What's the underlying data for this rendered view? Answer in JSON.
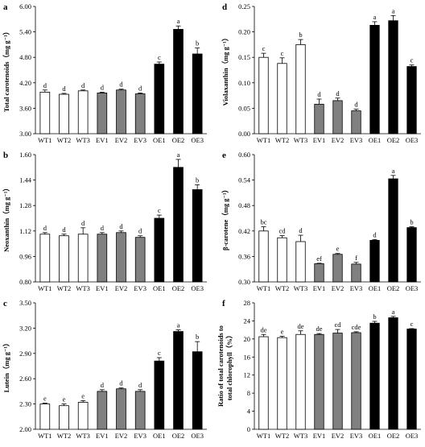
{
  "colors": {
    "wt": "#ffffff",
    "ev": "#808080",
    "oe": "#000000",
    "stroke": "#000000"
  },
  "chart_data": [
    {
      "type": "bar",
      "panel": "a",
      "ylabel": "Total carotenoids（mg g⁻¹）",
      "ylim": [
        3.0,
        6.0
      ],
      "yticks": [
        "3.00",
        "3.60",
        "4.20",
        "4.80",
        "5.40",
        "6.00"
      ],
      "categories": [
        "WT1",
        "WT2",
        "WT3",
        "EV1",
        "EV2",
        "EV3",
        "OE1",
        "OE2",
        "OE3"
      ],
      "groups": [
        "wt",
        "wt",
        "wt",
        "ev",
        "ev",
        "ev",
        "oe",
        "oe",
        "oe"
      ],
      "values": [
        3.98,
        3.93,
        4.01,
        3.96,
        4.03,
        3.94,
        4.64,
        5.46,
        4.88
      ],
      "errors": [
        0.05,
        0.02,
        0.02,
        0.02,
        0.02,
        0.02,
        0.05,
        0.08,
        0.14
      ],
      "letters": [
        "d",
        "d",
        "d",
        "d",
        "d",
        "d",
        "c",
        "a",
        "b"
      ]
    },
    {
      "type": "bar",
      "panel": "b",
      "ylabel": "Neoxanthin（mg g⁻¹）",
      "ylim": [
        0.8,
        1.6
      ],
      "yticks": [
        "0.80",
        "0.96",
        "1.12",
        "1.28",
        "1.44",
        "1.60"
      ],
      "categories": [
        "WT1",
        "WT2",
        "WT3",
        "EV1",
        "EV2",
        "EV3",
        "OE1",
        "OE2",
        "OE3"
      ],
      "groups": [
        "wt",
        "wt",
        "wt",
        "ev",
        "ev",
        "ev",
        "oe",
        "oe",
        "oe"
      ],
      "values": [
        1.1,
        1.09,
        1.1,
        1.1,
        1.11,
        1.08,
        1.2,
        1.52,
        1.38
      ],
      "errors": [
        0.01,
        0.01,
        0.04,
        0.01,
        0.01,
        0.01,
        0.02,
        0.05,
        0.03
      ],
      "letters": [
        "d",
        "d",
        "d",
        "d",
        "d",
        "d",
        "c",
        "a",
        "b"
      ]
    },
    {
      "type": "bar",
      "panel": "c",
      "ylabel": "Lutein（mg g⁻¹）",
      "ylim": [
        2.0,
        3.5
      ],
      "yticks": [
        "2.00",
        "2.30",
        "2.60",
        "2.90",
        "3.20",
        "3.50"
      ],
      "categories": [
        "WT1",
        "WT2",
        "WT3",
        "EV1",
        "EV2",
        "EV3",
        "OE1",
        "OE2",
        "OE3"
      ],
      "groups": [
        "wt",
        "wt",
        "wt",
        "ev",
        "ev",
        "ev",
        "oe",
        "oe",
        "oe"
      ],
      "values": [
        2.3,
        2.28,
        2.32,
        2.45,
        2.48,
        2.45,
        2.81,
        3.16,
        2.92
      ],
      "errors": [
        0.01,
        0.02,
        0.02,
        0.02,
        0.01,
        0.02,
        0.04,
        0.02,
        0.12
      ],
      "letters": [
        "e",
        "e",
        "e",
        "d",
        "d",
        "d",
        "c",
        "a",
        "b"
      ]
    },
    {
      "type": "bar",
      "panel": "d",
      "ylabel": "Violaxanthin（mg g⁻¹）",
      "ylim": [
        0.0,
        0.25
      ],
      "yticks": [
        "0.00",
        "0.05",
        "0.10",
        "0.15",
        "0.20",
        "0.25"
      ],
      "categories": [
        "WT1",
        "WT2",
        "WT3",
        "EV1",
        "EV2",
        "EV3",
        "OE1",
        "OE2",
        "OE3"
      ],
      "groups": [
        "wt",
        "wt",
        "wt",
        "ev",
        "ev",
        "ev",
        "oe",
        "oe",
        "oe"
      ],
      "values": [
        0.15,
        0.138,
        0.175,
        0.058,
        0.065,
        0.045,
        0.213,
        0.222,
        0.132
      ],
      "errors": [
        0.008,
        0.011,
        0.01,
        0.01,
        0.005,
        0.003,
        0.007,
        0.01,
        0.003
      ],
      "letters": [
        "c",
        "c",
        "b",
        "d",
        "d",
        "d",
        "a",
        "a",
        "c"
      ]
    },
    {
      "type": "bar",
      "panel": "e",
      "ylabel": "β-carotene（mg g⁻¹）",
      "ylim": [
        0.3,
        0.6
      ],
      "yticks": [
        "0.30",
        "0.36",
        "0.42",
        "0.48",
        "0.54",
        "0.60"
      ],
      "categories": [
        "WT1",
        "WT2",
        "WT3",
        "EV1",
        "EV2",
        "EV3",
        "OE1",
        "OE2",
        "OE3"
      ],
      "groups": [
        "wt",
        "wt",
        "wt",
        "ev",
        "ev",
        "ev",
        "oe",
        "oe",
        "oe"
      ],
      "values": [
        0.42,
        0.404,
        0.395,
        0.343,
        0.365,
        0.342,
        0.398,
        0.543,
        0.428
      ],
      "errors": [
        0.01,
        0.005,
        0.015,
        0.001,
        0.002,
        0.004,
        0.002,
        0.008,
        0.002
      ],
      "letters": [
        "bc",
        "cd",
        "d",
        "ef",
        "e",
        "f",
        "d",
        "a",
        "b"
      ]
    },
    {
      "type": "bar",
      "panel": "f",
      "ylabel": "Ratio of total carotenoids to total chlorophyll（%）",
      "ylim": [
        0,
        28
      ],
      "yticks": [
        "0",
        "4",
        "8",
        "12",
        "16",
        "20",
        "24",
        "28"
      ],
      "categories": [
        "WT1",
        "WT2",
        "WT3",
        "EV1",
        "EV2",
        "EV3",
        "OE1",
        "OE2",
        "OE3"
      ],
      "groups": [
        "wt",
        "wt",
        "wt",
        "ev",
        "ev",
        "ev",
        "oe",
        "oe",
        "oe"
      ],
      "values": [
        20.5,
        20.3,
        21.0,
        21.0,
        21.3,
        21.4,
        23.5,
        24.7,
        22.2
      ],
      "errors": [
        0.5,
        0.3,
        0.8,
        0.2,
        0.8,
        0.2,
        0.4,
        0.3,
        0.1
      ],
      "letters": [
        "de",
        "e",
        "de",
        "de",
        "cd",
        "cde",
        "b",
        "a",
        "c"
      ]
    }
  ]
}
